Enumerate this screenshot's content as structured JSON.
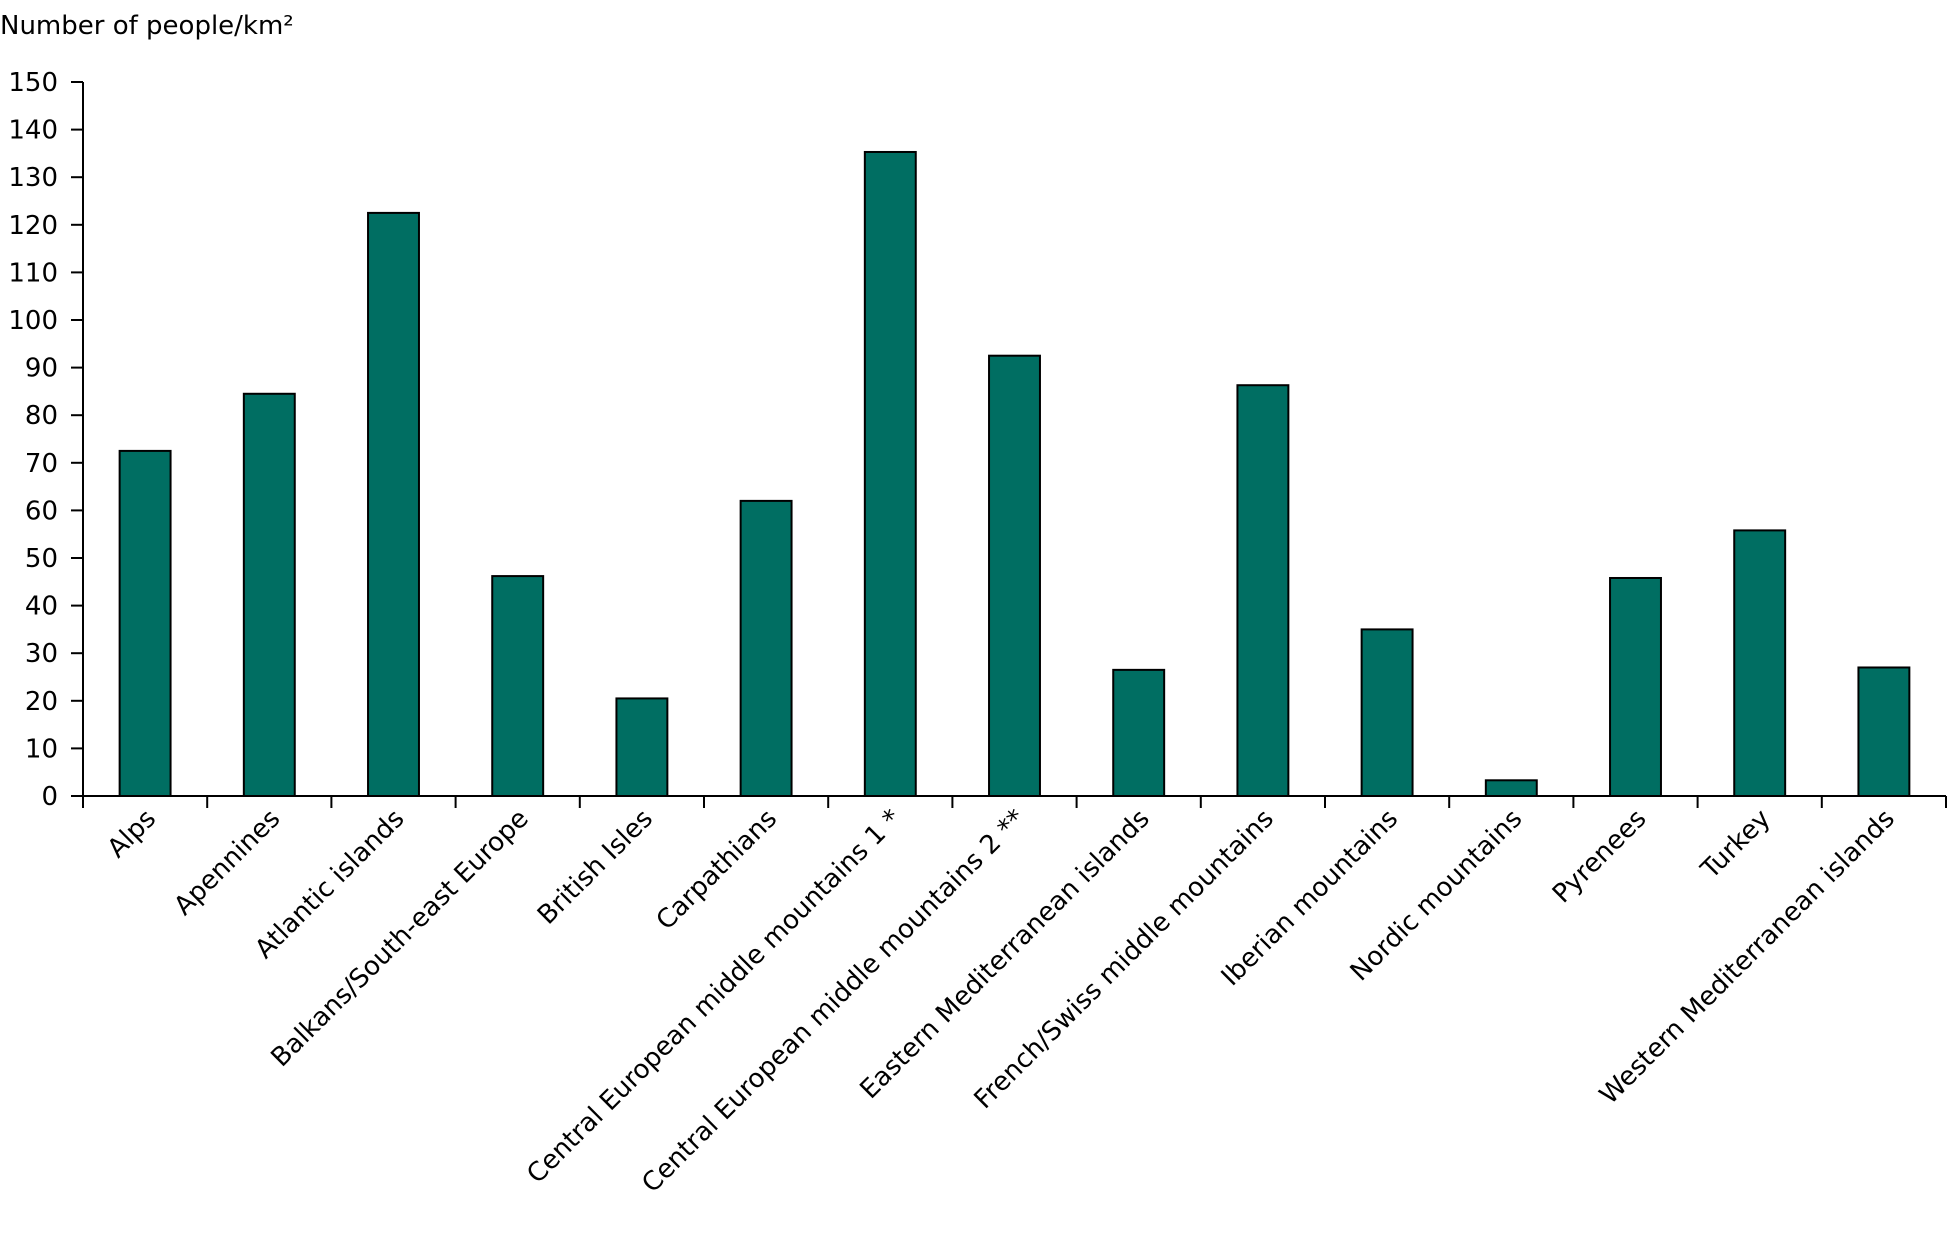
{
  "chart_data": {
    "type": "bar",
    "title": "",
    "ylabel": "Number of people/km²",
    "xlabel": "",
    "ylim": [
      0,
      150
    ],
    "yticks": [
      0,
      10,
      20,
      30,
      40,
      50,
      60,
      70,
      80,
      90,
      100,
      110,
      120,
      130,
      140,
      150
    ],
    "grid": false,
    "legend": "none",
    "bar_color": "#006e62",
    "categories": [
      "Alps",
      "Apennines",
      "Atlantic islands",
      "Balkans/South-east Europe",
      "British Isles",
      "Carpathians",
      "Central European middle mountains 1 *",
      "Central European middle mountains 2 **",
      "Eastern Mediterranean islands",
      "French/Swiss middle mountains",
      "Iberian mountains",
      "Nordic mountains",
      "Pyrenees",
      "Turkey",
      "Western Mediterranean islands"
    ],
    "values": [
      72.5,
      84.5,
      122.5,
      46.2,
      20.5,
      62,
      135.3,
      92.5,
      26.5,
      86.3,
      35,
      3.3,
      45.8,
      55.8,
      27
    ]
  }
}
